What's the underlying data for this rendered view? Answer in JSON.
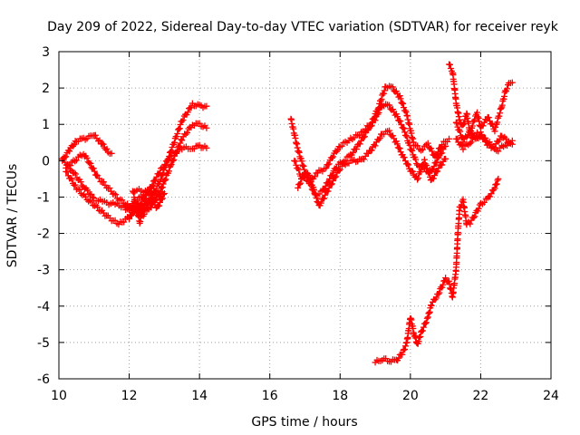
{
  "chart_data": {
    "type": "scatter",
    "title": "Day 209 of 2022, Sidereal Day-to-day VTEC variation (SDTVAR) for receiver reyk",
    "xlabel": "GPS time / hours",
    "ylabel": "SDTVAR / TECUs",
    "xlim": [
      10,
      24
    ],
    "ylim": [
      -6,
      3
    ],
    "x_ticks": [
      "10",
      "12",
      "14",
      "16",
      "18",
      "20",
      "22",
      "24"
    ],
    "y_ticks": [
      "-6",
      "-5",
      "-4",
      "-3",
      "-2",
      "-1",
      "0",
      "1",
      "2",
      "3"
    ],
    "grid": true,
    "marker": "+",
    "series": [
      {
        "name": "track-1",
        "color": "#ff0000",
        "points": [
          [
            10.1,
            0.0
          ],
          [
            10.3,
            0.3
          ],
          [
            10.5,
            0.55
          ],
          [
            10.7,
            0.6
          ],
          [
            10.9,
            0.65
          ],
          [
            11.0,
            0.7
          ],
          [
            11.2,
            0.5
          ],
          [
            11.4,
            0.25
          ],
          [
            11.5,
            0.2
          ]
        ]
      },
      {
        "name": "track-2",
        "color": "#ff0000",
        "points": [
          [
            10.1,
            0.05
          ],
          [
            10.4,
            -0.3
          ],
          [
            10.7,
            -0.7
          ],
          [
            11.0,
            -1.05
          ],
          [
            11.3,
            -1.15
          ],
          [
            11.6,
            -1.2
          ],
          [
            12.0,
            -1.3
          ],
          [
            12.3,
            -1.45
          ],
          [
            12.6,
            -1.3
          ],
          [
            12.9,
            -0.8
          ],
          [
            13.2,
            -0.1
          ],
          [
            13.5,
            0.6
          ],
          [
            13.8,
            1.0
          ],
          [
            14.0,
            1.0
          ],
          [
            14.2,
            0.9
          ]
        ]
      },
      {
        "name": "track-3",
        "color": "#ff0000",
        "points": [
          [
            10.2,
            -0.2
          ],
          [
            10.5,
            0.05
          ],
          [
            10.7,
            0.2
          ],
          [
            10.9,
            -0.1
          ],
          [
            11.1,
            -0.45
          ],
          [
            11.4,
            -0.75
          ],
          [
            11.7,
            -1.05
          ],
          [
            12.0,
            -1.25
          ],
          [
            12.3,
            -1.35
          ],
          [
            12.6,
            -1.1
          ],
          [
            12.9,
            -0.5
          ],
          [
            13.2,
            0.3
          ],
          [
            13.5,
            1.1
          ],
          [
            13.8,
            1.55
          ],
          [
            14.0,
            1.5
          ],
          [
            14.2,
            1.5
          ]
        ]
      },
      {
        "name": "track-4",
        "color": "#ff0000",
        "points": [
          [
            10.2,
            -0.3
          ],
          [
            10.5,
            -0.75
          ],
          [
            10.8,
            -1.05
          ],
          [
            11.1,
            -1.3
          ],
          [
            11.4,
            -1.55
          ],
          [
            11.7,
            -1.75
          ],
          [
            12.0,
            -1.55
          ],
          [
            12.3,
            -1.2
          ],
          [
            12.6,
            -0.75
          ],
          [
            12.9,
            -0.25
          ],
          [
            13.2,
            0.15
          ],
          [
            13.5,
            0.35
          ],
          [
            13.8,
            0.35
          ],
          [
            14.0,
            0.4
          ],
          [
            14.2,
            0.35
          ]
        ]
      },
      {
        "name": "track-5",
        "color": "#ff0000",
        "points": [
          [
            12.0,
            -1.6
          ],
          [
            12.2,
            -1.2
          ],
          [
            12.4,
            -1.5
          ],
          [
            12.6,
            -1.05
          ],
          [
            12.8,
            -1.3
          ],
          [
            13.0,
            -0.9
          ],
          [
            12.1,
            -0.8
          ],
          [
            12.3,
            -1.7
          ],
          [
            12.5,
            -0.9
          ],
          [
            12.9,
            -1.0
          ],
          [
            11.9,
            -1.35
          ],
          [
            12.7,
            -0.7
          ]
        ]
      },
      {
        "name": "track-6",
        "color": "#ff0000",
        "points": [
          [
            16.6,
            1.15
          ],
          [
            16.8,
            0.3
          ],
          [
            17.0,
            -0.3
          ],
          [
            17.2,
            -0.5
          ],
          [
            17.4,
            -0.3
          ],
          [
            17.6,
            -0.2
          ],
          [
            17.8,
            0.15
          ],
          [
            18.0,
            0.4
          ],
          [
            18.3,
            0.6
          ],
          [
            18.6,
            0.75
          ],
          [
            18.9,
            1.05
          ],
          [
            19.1,
            1.5
          ],
          [
            19.3,
            2.05
          ],
          [
            19.5,
            2.0
          ],
          [
            19.7,
            1.75
          ],
          [
            19.9,
            1.25
          ],
          [
            20.1,
            0.45
          ],
          [
            20.3,
            0.3
          ],
          [
            20.5,
            0.45
          ],
          [
            20.7,
            0.1
          ],
          [
            20.9,
            0.45
          ],
          [
            21.1,
            0.6
          ]
        ]
      },
      {
        "name": "track-7",
        "color": "#ff0000",
        "points": [
          [
            16.7,
            0.0
          ],
          [
            16.9,
            -0.45
          ],
          [
            17.1,
            -0.55
          ],
          [
            17.3,
            -0.95
          ],
          [
            17.5,
            -0.85
          ],
          [
            17.7,
            -0.5
          ],
          [
            17.9,
            -0.15
          ],
          [
            18.1,
            0.0
          ],
          [
            18.3,
            0.15
          ],
          [
            18.5,
            0.4
          ],
          [
            18.8,
            0.85
          ],
          [
            19.0,
            1.15
          ],
          [
            19.2,
            1.55
          ],
          [
            19.4,
            1.5
          ],
          [
            19.6,
            1.25
          ],
          [
            19.8,
            0.9
          ],
          [
            20.0,
            0.35
          ],
          [
            20.2,
            -0.1
          ],
          [
            20.4,
            -0.25
          ],
          [
            20.6,
            -0.3
          ],
          [
            20.8,
            0.1
          ],
          [
            21.0,
            0.4
          ]
        ]
      },
      {
        "name": "track-8",
        "color": "#ff0000",
        "points": [
          [
            16.8,
            -0.75
          ],
          [
            17.0,
            -0.3
          ],
          [
            17.2,
            -0.65
          ],
          [
            17.4,
            -1.25
          ],
          [
            17.6,
            -0.9
          ],
          [
            17.8,
            -0.55
          ],
          [
            18.0,
            -0.2
          ],
          [
            18.2,
            -0.05
          ],
          [
            18.4,
            0.0
          ],
          [
            18.6,
            0.0
          ],
          [
            18.8,
            0.2
          ],
          [
            19.0,
            0.45
          ],
          [
            19.2,
            0.75
          ],
          [
            19.4,
            0.8
          ],
          [
            19.6,
            0.5
          ],
          [
            19.8,
            0.1
          ],
          [
            20.0,
            -0.25
          ],
          [
            20.2,
            -0.5
          ],
          [
            20.4,
            0.0
          ],
          [
            20.6,
            -0.55
          ],
          [
            20.8,
            -0.2
          ],
          [
            21.0,
            0.05
          ]
        ]
      },
      {
        "name": "track-9",
        "color": "#ff0000",
        "points": [
          [
            19.0,
            -5.55
          ],
          [
            19.2,
            -5.45
          ],
          [
            19.4,
            -5.5
          ],
          [
            19.6,
            -5.5
          ],
          [
            19.8,
            -5.25
          ],
          [
            19.9,
            -5.0
          ],
          [
            20.0,
            -4.3
          ],
          [
            20.1,
            -4.75
          ],
          [
            20.2,
            -5.05
          ],
          [
            20.3,
            -4.75
          ],
          [
            20.5,
            -4.3
          ],
          [
            20.6,
            -3.95
          ],
          [
            20.8,
            -3.65
          ],
          [
            21.0,
            -3.25
          ],
          [
            21.1,
            -3.35
          ],
          [
            21.2,
            -3.75
          ],
          [
            21.3,
            -3.0
          ],
          [
            21.35,
            -2.0
          ],
          [
            21.4,
            -1.3
          ],
          [
            21.5,
            -1.1
          ],
          [
            21.6,
            -1.75
          ],
          [
            21.7,
            -1.7
          ],
          [
            21.8,
            -1.55
          ],
          [
            22.0,
            -1.2
          ],
          [
            22.2,
            -1.05
          ],
          [
            22.4,
            -0.75
          ],
          [
            22.5,
            -0.5
          ]
        ]
      },
      {
        "name": "track-10",
        "color": "#ff0000",
        "points": [
          [
            21.1,
            2.65
          ],
          [
            21.2,
            2.45
          ],
          [
            21.3,
            1.6
          ],
          [
            21.4,
            1.1
          ],
          [
            21.5,
            0.95
          ],
          [
            21.6,
            1.3
          ],
          [
            21.7,
            0.75
          ],
          [
            21.8,
            1.1
          ],
          [
            21.9,
            1.3
          ],
          [
            22.0,
            0.9
          ],
          [
            22.2,
            1.2
          ],
          [
            22.4,
            0.85
          ],
          [
            22.6,
            1.5
          ],
          [
            22.7,
            1.9
          ],
          [
            22.8,
            2.1
          ],
          [
            22.9,
            2.15
          ]
        ]
      },
      {
        "name": "track-11",
        "color": "#ff0000",
        "points": [
          [
            21.3,
            1.05
          ],
          [
            21.5,
            0.55
          ],
          [
            21.7,
            0.8
          ],
          [
            21.9,
            0.6
          ],
          [
            22.0,
            0.75
          ],
          [
            22.2,
            0.5
          ],
          [
            22.4,
            0.4
          ],
          [
            22.6,
            0.7
          ],
          [
            22.8,
            0.5
          ],
          [
            22.9,
            0.55
          ]
        ]
      },
      {
        "name": "track-12",
        "color": "#ff0000",
        "points": [
          [
            21.3,
            0.6
          ],
          [
            21.5,
            0.35
          ],
          [
            21.7,
            0.5
          ],
          [
            21.9,
            0.75
          ],
          [
            22.1,
            0.55
          ],
          [
            22.3,
            0.35
          ],
          [
            22.5,
            0.3
          ],
          [
            22.7,
            0.45
          ],
          [
            22.9,
            0.45
          ]
        ]
      }
    ]
  }
}
